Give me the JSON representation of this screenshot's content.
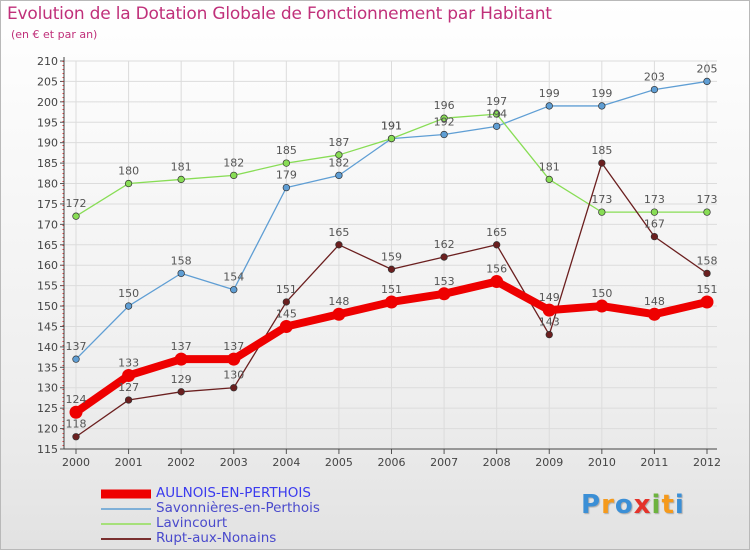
{
  "chart_data": {
    "type": "line",
    "title": "Evolution de la Dotation Globale de Fonctionnement par Habitant",
    "subtitle": "(en € et par an)",
    "xlabel": "",
    "ylabel": "",
    "ylim": [
      115,
      210
    ],
    "ytick_step": 5,
    "categories": [
      "2000",
      "2001",
      "2002",
      "2003",
      "2004",
      "2005",
      "2006",
      "2007",
      "2008",
      "2009",
      "2010",
      "2011",
      "2012"
    ],
    "series": [
      {
        "name": "AULNOIS-EN-PERTHOIS",
        "color": "#ee0000",
        "emphasis": true,
        "values": [
          124,
          133,
          137,
          137,
          145,
          148,
          151,
          153,
          156,
          149,
          150,
          148,
          151
        ]
      },
      {
        "name": "Savonnières-en-Perthois",
        "color": "#5f9ed4",
        "emphasis": false,
        "values": [
          137,
          150,
          158,
          154,
          179,
          182,
          191,
          192,
          194,
          199,
          199,
          203,
          205
        ]
      },
      {
        "name": "Lavincourt",
        "color": "#88dd55",
        "emphasis": false,
        "values": [
          172,
          180,
          181,
          182,
          185,
          187,
          191,
          196,
          197,
          181,
          173,
          173,
          173
        ]
      },
      {
        "name": "Rupt-aux-Nonains",
        "color": "#6b1f1f",
        "emphasis": false,
        "values": [
          118,
          127,
          129,
          130,
          151,
          165,
          159,
          162,
          165,
          143,
          185,
          167,
          158
        ]
      }
    ]
  },
  "legend": {
    "items": [
      {
        "label": "AULNOIS-EN-PERTHOIS",
        "color": "#ee0000",
        "label_color": "#3a3aee"
      },
      {
        "label": "Savonnières-en-Perthois",
        "color": "#7fb0d8",
        "label_color": "#4a4acc"
      },
      {
        "label": "Lavincourt",
        "color": "#a6e07a",
        "label_color": "#4a4acc"
      },
      {
        "label": "Rupt-aux-Nonains",
        "color": "#7a3030",
        "label_color": "#4a4acc"
      }
    ]
  },
  "brand": {
    "letters": [
      "P",
      "r",
      "o",
      "x",
      "i",
      "t",
      "i"
    ],
    "colors": [
      "#3b8fd6",
      "#f59a1c",
      "#3b8fd6",
      "#e4332b",
      "#6db33f",
      "#f59a1c",
      "#3b8fd6"
    ]
  }
}
